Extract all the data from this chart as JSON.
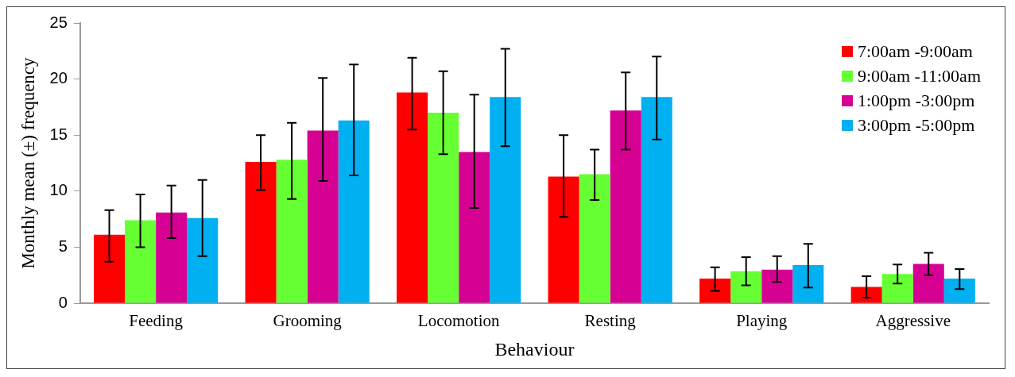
{
  "chart_data": {
    "type": "bar",
    "xlabel": "Behaviour",
    "ylabel": "Monthly mean (±) frequency",
    "categories": [
      "Feeding",
      "Grooming",
      "Locomotion",
      "Resting",
      "Playing",
      "Aggressive"
    ],
    "series": [
      {
        "name": "7:00am -9:00am",
        "color": "#ff0000",
        "values": [
          6.1,
          12.6,
          18.8,
          11.3,
          2.2,
          1.45
        ],
        "errors": [
          [
            3.7,
            8.3
          ],
          [
            10.1,
            15.0
          ],
          [
            15.5,
            21.9
          ],
          [
            7.7,
            15.0
          ],
          [
            1.1,
            3.2
          ],
          [
            0.5,
            2.4
          ]
        ]
      },
      {
        "name": "9:00am -11:00am",
        "color": "#66ff33",
        "values": [
          7.4,
          12.8,
          17.0,
          11.5,
          2.85,
          2.6
        ],
        "errors": [
          [
            5.0,
            9.7
          ],
          [
            9.3,
            16.1
          ],
          [
            13.3,
            20.7
          ],
          [
            9.2,
            13.7
          ],
          [
            1.6,
            4.1
          ],
          [
            1.75,
            3.45
          ]
        ]
      },
      {
        "name": "1:00pm -3:00pm",
        "color": "#d60093",
        "values": [
          8.1,
          15.4,
          13.5,
          17.2,
          3.0,
          3.5
        ],
        "errors": [
          [
            5.8,
            10.5
          ],
          [
            10.9,
            20.1
          ],
          [
            8.5,
            18.6
          ],
          [
            13.7,
            20.6
          ],
          [
            1.9,
            4.2
          ],
          [
            2.5,
            4.5
          ]
        ]
      },
      {
        "name": "3:00pm -5:00pm",
        "color": "#00b0f0",
        "values": [
          7.6,
          16.3,
          18.4,
          18.4,
          3.4,
          2.2
        ],
        "errors": [
          [
            4.2,
            11.0
          ],
          [
            11.4,
            21.3
          ],
          [
            14.0,
            22.7
          ],
          [
            14.6,
            22.0
          ],
          [
            1.4,
            5.3
          ],
          [
            1.25,
            3.05
          ]
        ]
      }
    ],
    "ylim": [
      0,
      25
    ],
    "yticks": [
      0,
      5,
      10,
      15,
      20,
      25
    ],
    "grid": false,
    "legend": "top right"
  }
}
